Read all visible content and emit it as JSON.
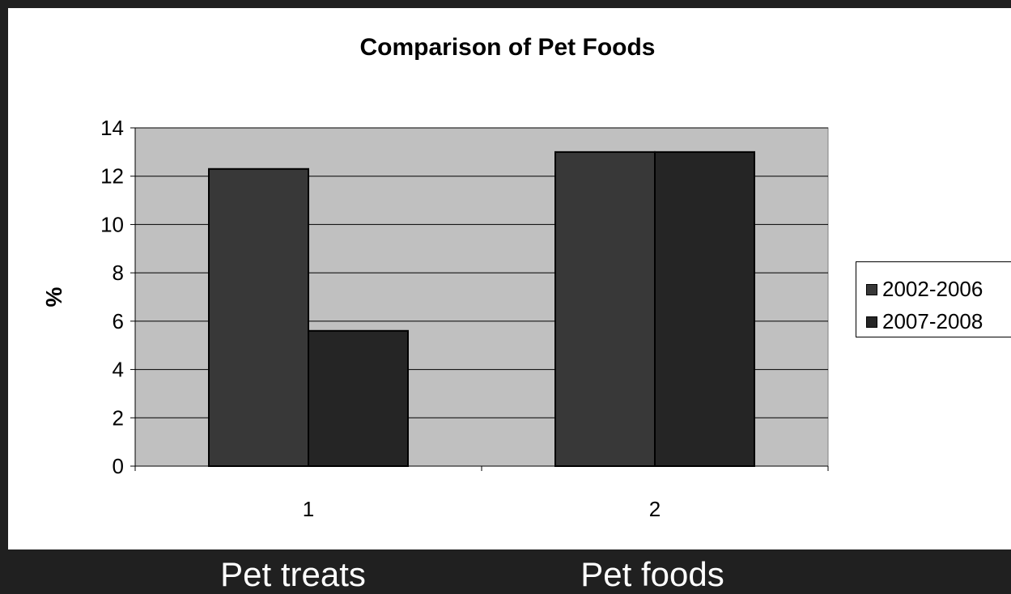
{
  "chart_data": {
    "type": "bar",
    "title": "Comparison of Pet Foods",
    "xlabel": "",
    "ylabel": "%",
    "categories": [
      "1",
      "2"
    ],
    "series": [
      {
        "name": "2002-2006",
        "values": [
          12.3,
          13.0
        ]
      },
      {
        "name": "2007-2008",
        "values": [
          5.6,
          13.0
        ]
      }
    ],
    "ylim": [
      0,
      14
    ],
    "yticks": [
      0,
      2,
      4,
      6,
      8,
      10,
      12,
      14
    ],
    "grid": true,
    "legend_position": "right",
    "colors": {
      "plot_background": "#c0c0c0",
      "page_background": "#202020",
      "series": [
        "#383838",
        "#252525"
      ]
    }
  },
  "slide": {
    "bottom_labels": [
      "Pet treats",
      "Pet foods"
    ]
  }
}
